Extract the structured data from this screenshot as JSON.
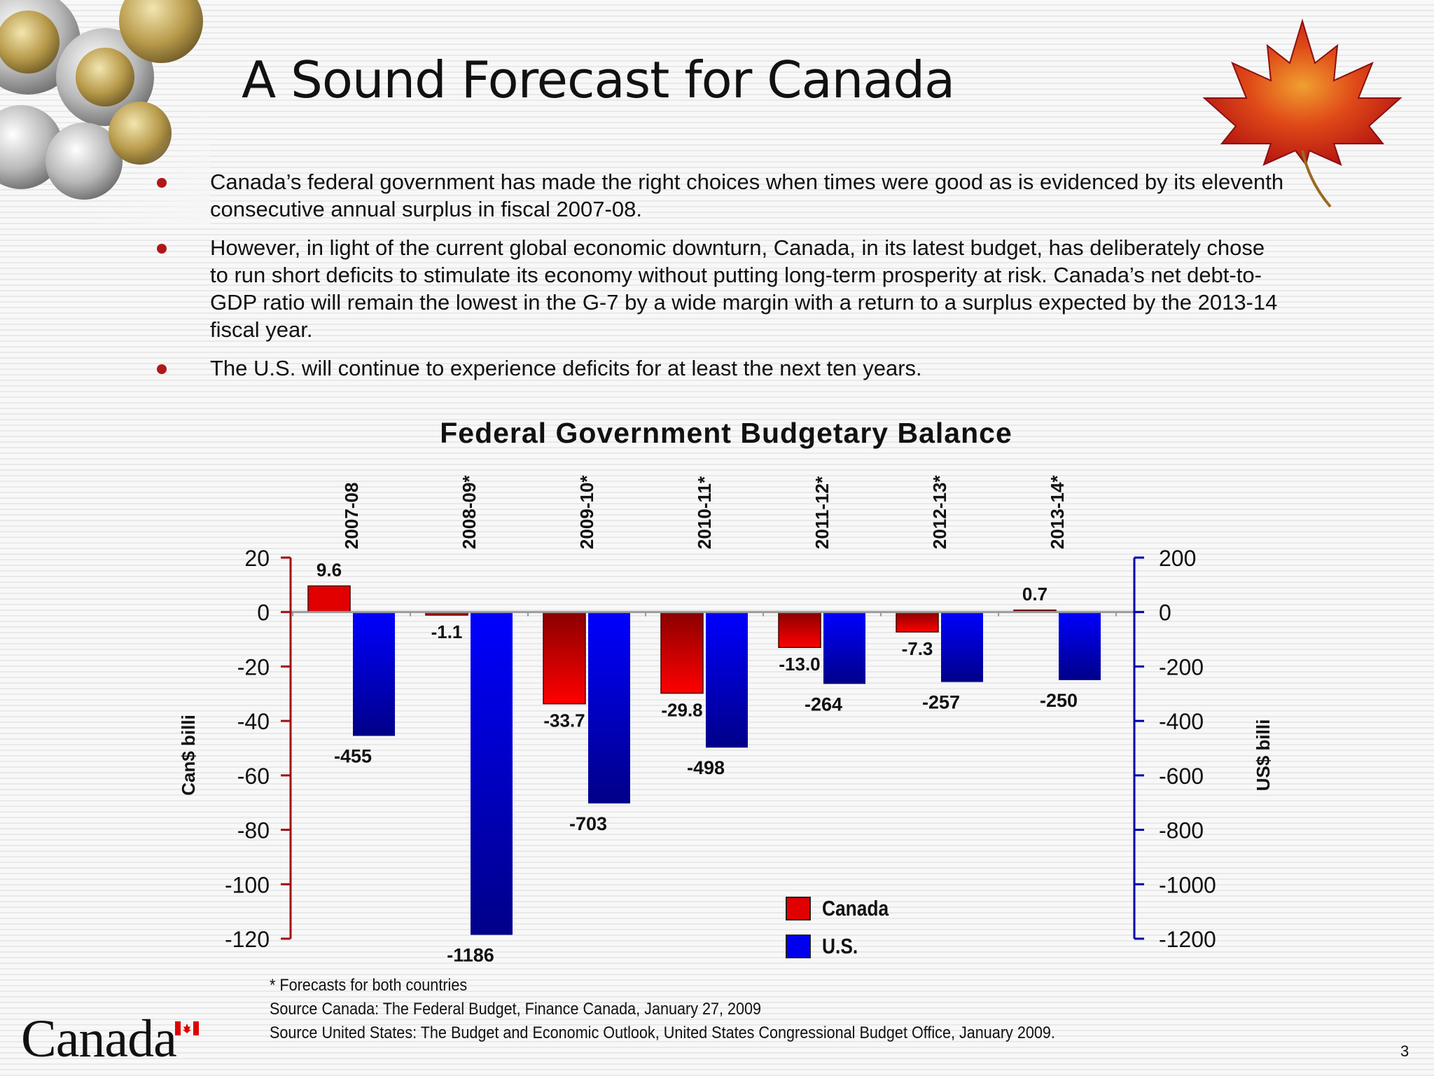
{
  "slide": {
    "title": "A Sound Forecast for Canada",
    "page_number": "3",
    "wordmark": "Canada"
  },
  "bullets": [
    "Canada’s federal government has made the right choices when times were good as is evidenced by its eleventh consecutive annual surplus in fiscal 2007-08.",
    "However, in light of the current global economic downturn, Canada, in its latest  budget, has deliberately chose to run short deficits to stimulate its economy without putting long-term prosperity at risk. Canada’s net debt-to-GDP ratio will remain the lowest in the G-7 by a wide margin with a return to a surplus expected by the 2013-14 fiscal year.",
    "The U.S. will continue to experience deficits for at least the next ten years."
  ],
  "notes": [
    "* Forecasts for both countries",
    "Source Canada: The Federal Budget, Finance Canada, January 27, 2009",
    "Source United States: The Budget and Economic Outlook,  United States Congressional Budget Office, January 2009."
  ],
  "colors": {
    "canada": "#e00000",
    "us": "#0000ee",
    "left_axis": "#a01010",
    "right_axis": "#0000aa"
  },
  "chart_data": {
    "type": "bar",
    "title": "Federal Government Budgetary Balance",
    "categories": [
      "2007-08",
      "2008-09*",
      "2009-10*",
      "2010-11*",
      "2011-12*",
      "2012-13*",
      "2013-14*"
    ],
    "series": [
      {
        "name": "Canada",
        "axis": "left",
        "values": [
          9.6,
          -1.1,
          -33.7,
          -29.8,
          -13.0,
          -7.3,
          0.7
        ],
        "labels": [
          "9.6",
          "-1.1",
          "-33.7",
          "-29.8",
          "-13.0",
          "-7.3",
          "0.7"
        ]
      },
      {
        "name": "U.S.",
        "axis": "right",
        "values": [
          -455,
          -1186,
          -703,
          -498,
          -264,
          -257,
          -250
        ],
        "labels": [
          "-455",
          "-1186",
          "-703",
          "-498",
          "-264",
          "-257",
          "-250"
        ]
      }
    ],
    "ylabel_left": "Can$ billi",
    "ylabel_right": "US$ billi",
    "ylim_left": [
      -120,
      20
    ],
    "ylim_right": [
      -1200,
      200
    ],
    "yticks_left": [
      "20",
      "0",
      "-20",
      "-40",
      "-60",
      "-80",
      "-100",
      "-120"
    ],
    "yticks_right": [
      "200",
      "0",
      "-200",
      "-400",
      "-600",
      "-800",
      "-1000",
      "-1200"
    ],
    "legend_position": "bottom-center",
    "grid": false
  }
}
